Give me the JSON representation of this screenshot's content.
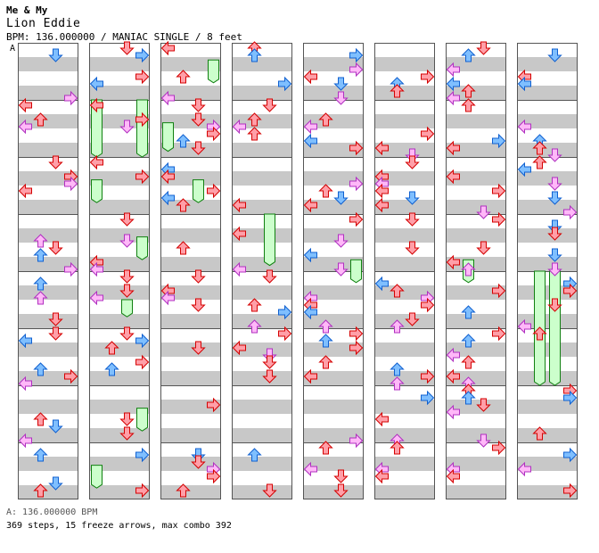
{
  "song": {
    "title": "Me & My",
    "artist": "Lion Eddie",
    "info": "BPM: 136.000000 / MANIAC SINGLE / 8 feet"
  },
  "bpm_marker": "A",
  "footer": {
    "bpm_legend": "A: 136.000000 BPM",
    "stats": "369 steps, 15 freeze arrows, max combo 392"
  },
  "colors": {
    "red": "#ff9fa8",
    "red_stroke": "#d40000",
    "blue": "#7fbfff",
    "blue_stroke": "#1060d0",
    "pink": "#ffb8f8",
    "pink_stroke": "#b030c0",
    "freeze": "#ccffcc",
    "freeze_stroke": "#108010",
    "stripe": "#c8c8c8"
  },
  "columns": 8,
  "measures_per_column": 8,
  "freezes": [
    {
      "column": 1,
      "lane": 0,
      "start": 1.0,
      "end": 2.0
    },
    {
      "column": 1,
      "lane": 3,
      "start": 1.0,
      "end": 2.0
    },
    {
      "column": 1,
      "lane": 0,
      "start": 2.4,
      "end": 2.8
    },
    {
      "column": 1,
      "lane": 3,
      "start": 3.4,
      "end": 3.8
    },
    {
      "column": 1,
      "lane": 2,
      "start": 4.5,
      "end": 4.8
    },
    {
      "column": 1,
      "lane": 3,
      "start": 6.4,
      "end": 6.8
    },
    {
      "column": 1,
      "lane": 0,
      "start": 7.4,
      "end": 7.8
    },
    {
      "column": 2,
      "lane": 3,
      "start": 0.3,
      "end": 0.7
    },
    {
      "column": 2,
      "lane": 0,
      "start": 1.4,
      "end": 1.9
    },
    {
      "column": 2,
      "lane": 2,
      "start": 2.4,
      "end": 2.8
    },
    {
      "column": 3,
      "lane": 2,
      "start": 3.0,
      "end": 3.9
    },
    {
      "column": 4,
      "lane": 3,
      "start": 3.8,
      "end": 4.2
    },
    {
      "column": 6,
      "lane": 1,
      "start": 3.8,
      "end": 4.2
    },
    {
      "column": 7,
      "lane": 1,
      "start": 4.0,
      "end": 6.0
    },
    {
      "column": 7,
      "lane": 2,
      "start": 4.0,
      "end": 6.0
    }
  ]
}
